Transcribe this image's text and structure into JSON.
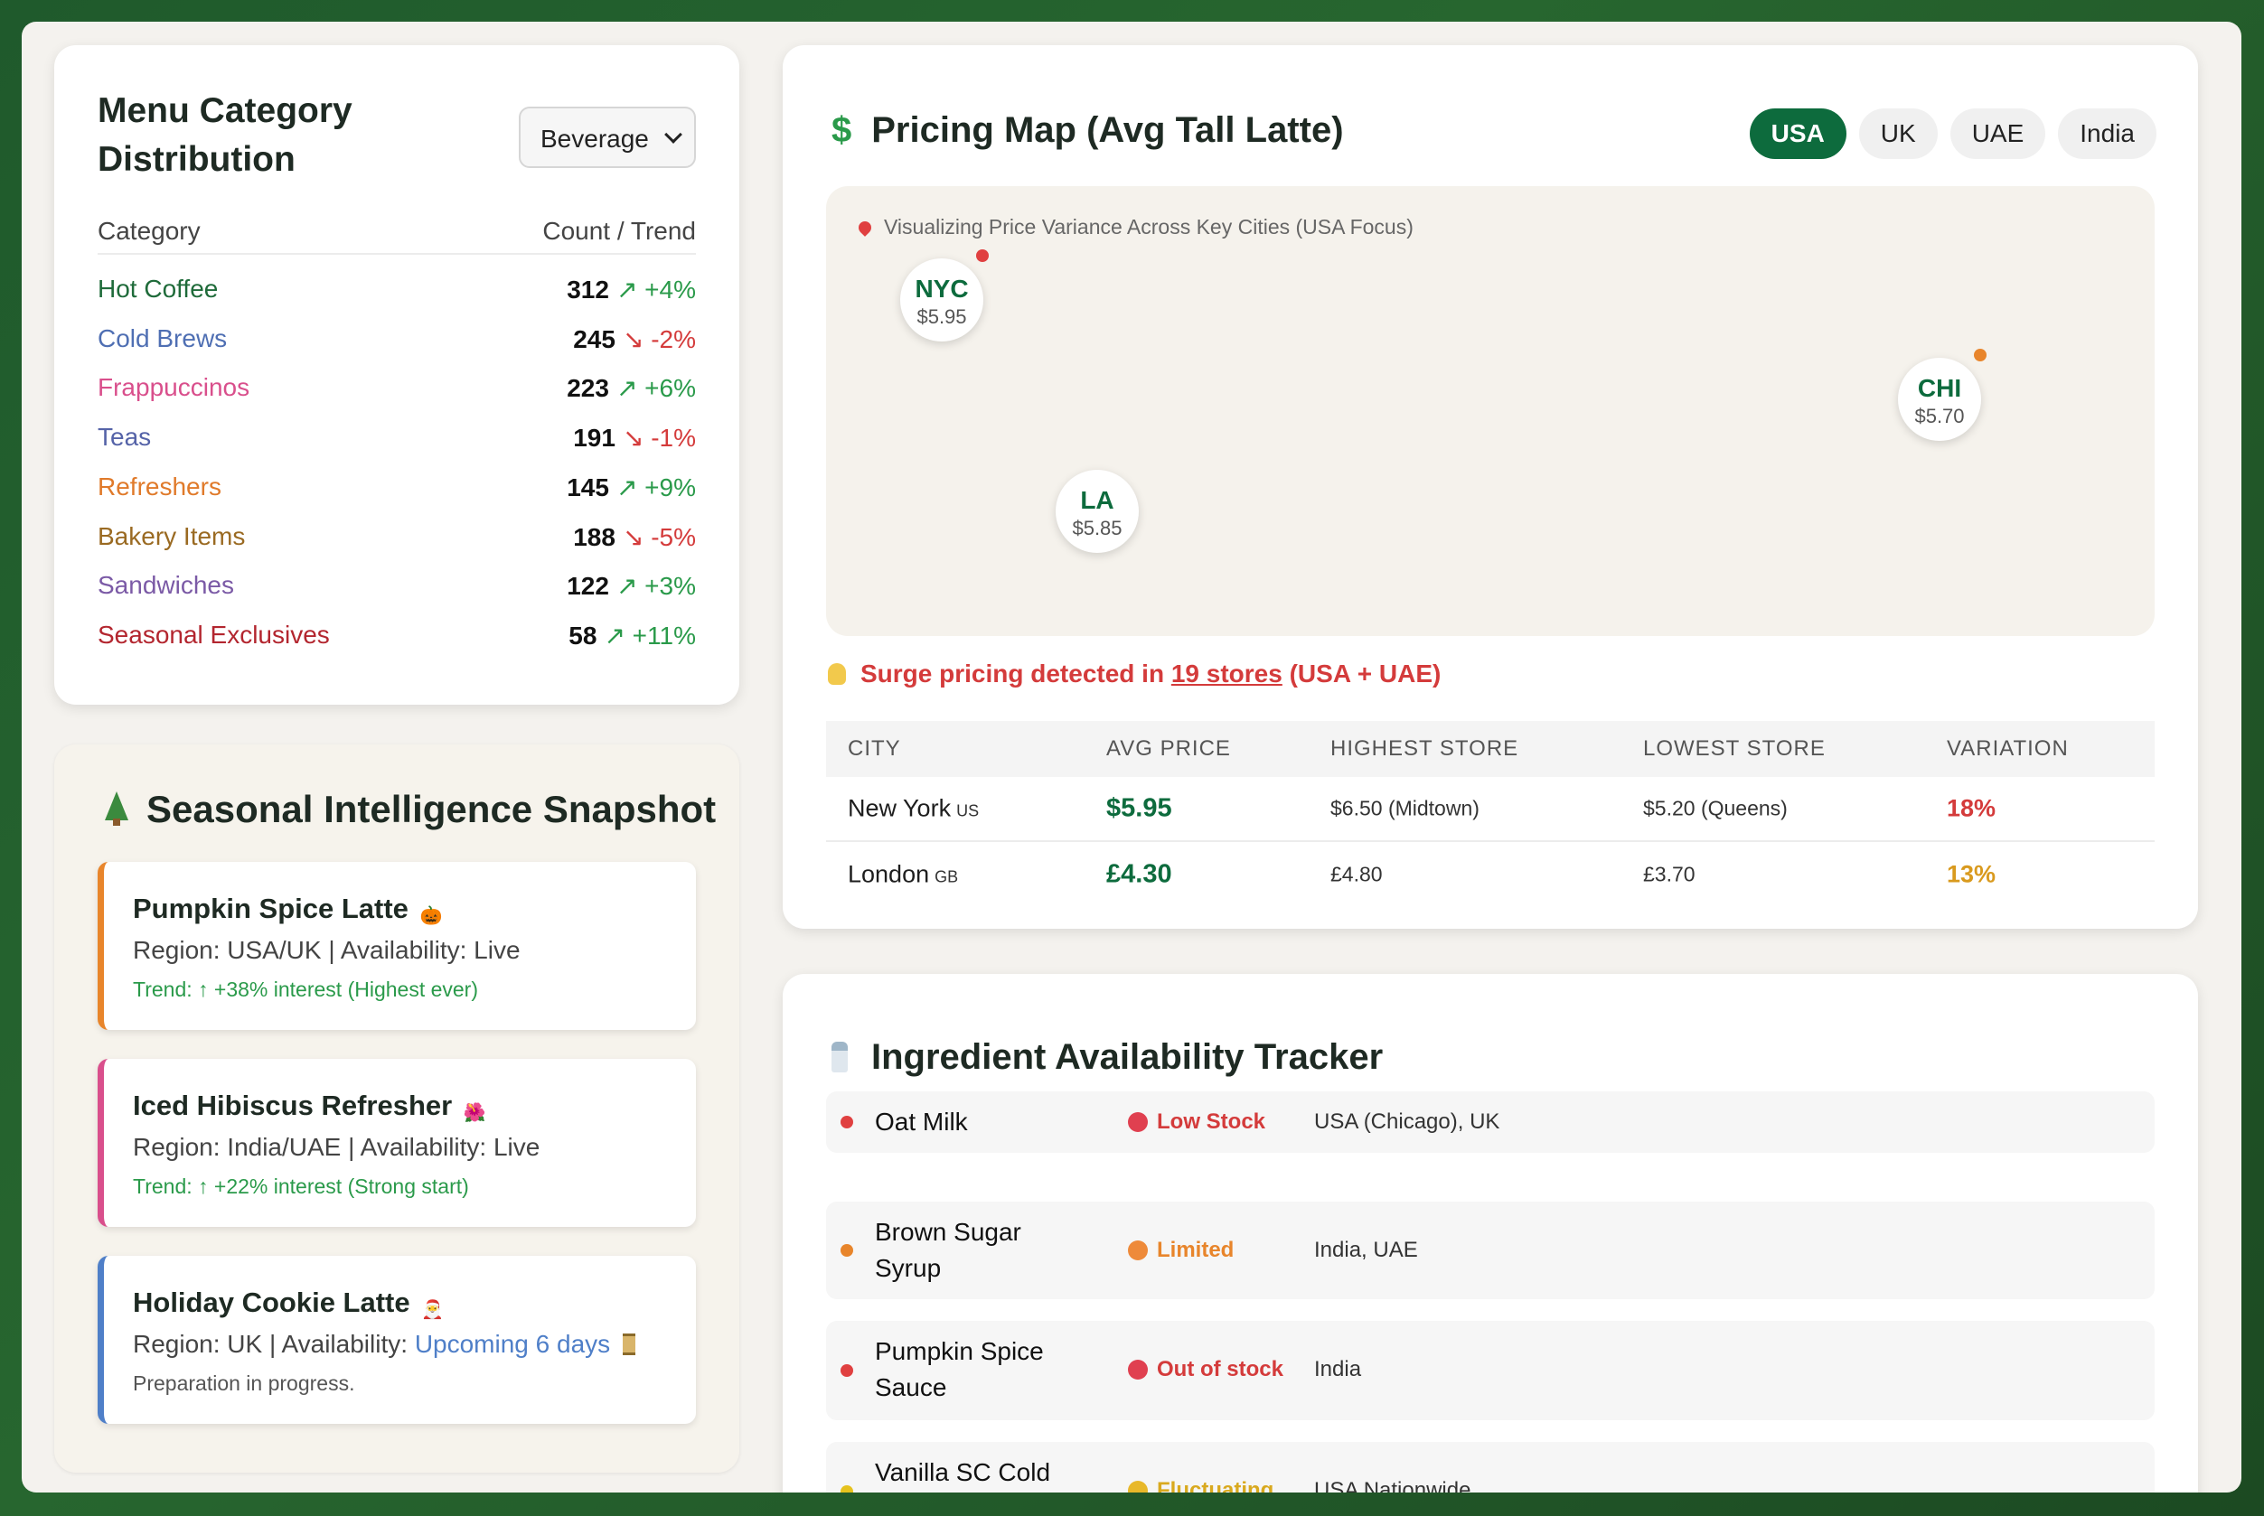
{
  "menu": {
    "title": "Menu Category Distribution",
    "select_value": "Beverage",
    "col_category": "Category",
    "col_count": "Count / Trend",
    "rows": [
      {
        "name": "Hot Coffee",
        "count": "312",
        "trend": "↗ +4%",
        "dir": "up",
        "color": "#1f6b3a"
      },
      {
        "name": "Cold Brews",
        "count": "245",
        "trend": "↘ -2%",
        "dir": "down",
        "color": "#4f6fb3"
      },
      {
        "name": "Frappuccinos",
        "count": "223",
        "trend": "↗ +6%",
        "dir": "up",
        "color": "#d94f8c"
      },
      {
        "name": "Teas",
        "count": "191",
        "trend": "↘ -1%",
        "dir": "down",
        "color": "#5563a8"
      },
      {
        "name": "Refreshers",
        "count": "145",
        "trend": "↗ +9%",
        "dir": "up",
        "color": "#e07a2a"
      },
      {
        "name": "Bakery Items",
        "count": "188",
        "trend": "↘ -5%",
        "dir": "down",
        "color": "#9a6a22"
      },
      {
        "name": "Sandwiches",
        "count": "122",
        "trend": "↗ +3%",
        "dir": "up",
        "color": "#7b5aa6"
      },
      {
        "name": "Seasonal Exclusives",
        "count": "58",
        "trend": "↗ +11%",
        "dir": "up",
        "color": "#b3262f"
      }
    ]
  },
  "seasonal": {
    "title": "Seasonal Intelligence Snapshot",
    "items": [
      {
        "name": "Pumpkin Spice Latte",
        "emoji": "🎃",
        "region": "Region: USA/UK | Availability: Live",
        "trend": "Trend: ↑ +38% interest (Highest ever)",
        "accent": "#e8852b"
      },
      {
        "name": "Iced Hibiscus Refresher",
        "emoji": "🌺",
        "region": "Region: India/UAE | Availability: Live",
        "trend": "Trend: ↑ +22% interest (Strong start)",
        "accent": "#d94f8c"
      },
      {
        "name": "Holiday Cookie Latte",
        "emoji": "🎅",
        "region_prefix": "Region: UK | Availability:",
        "region_highlight": "Upcoming 6 days",
        "note": "Preparation in progress.",
        "accent": "#4f7fc8"
      }
    ]
  },
  "pricing": {
    "title": "Pricing Map (Avg Tall Latte)",
    "tabs": [
      "USA",
      "UK",
      "UAE",
      "India"
    ],
    "active_tab": "USA",
    "map_caption": "Visualizing Price Variance Across Key Cities (USA Focus)",
    "cities": [
      {
        "code": "NYC",
        "price": "$5.95",
        "dot_color": "#e04040"
      },
      {
        "code": "CHI",
        "price": "$5.70",
        "dot_color": "#e8852b"
      },
      {
        "code": "LA",
        "price": "$5.85"
      }
    ],
    "surge_prefix": "Surge pricing detected in",
    "surge_link": "19 stores",
    "surge_suffix": "(USA + UAE)",
    "table_headers": [
      "CITY",
      "AVG PRICE",
      "HIGHEST STORE",
      "LOWEST STORE",
      "VARIATION"
    ],
    "table_rows": [
      {
        "city": "New York",
        "cc": "US",
        "avg": "$5.95",
        "high": "$6.50 (Midtown)",
        "low": "$5.20 (Queens)",
        "variation": "18%",
        "variation_color": "#d43b3b"
      },
      {
        "city": "London",
        "cc": "GB",
        "avg": "£4.30",
        "high": "£4.80",
        "low": "£3.70",
        "variation": "13%",
        "variation_color": "#d99a1e"
      }
    ]
  },
  "ingredients": {
    "title": "Ingredient Availability Tracker",
    "rows": [
      {
        "name": "Oat Milk",
        "status": "Low Stock",
        "status_color": "#d43b3b",
        "region": "USA (Chicago), UK"
      },
      {
        "name": "Brown Sugar Syrup",
        "status": "Limited",
        "status_color": "#e8852b",
        "region": "India, UAE"
      },
      {
        "name": "Pumpkin Spice Sauce",
        "status": "Out of stock",
        "status_color": "#d43b3b",
        "region": "India"
      },
      {
        "name": "Vanilla SC Cold Foam",
        "status": "Fluctuating",
        "status_color": "#d9a91e",
        "region": "USA Nationwide"
      }
    ]
  }
}
